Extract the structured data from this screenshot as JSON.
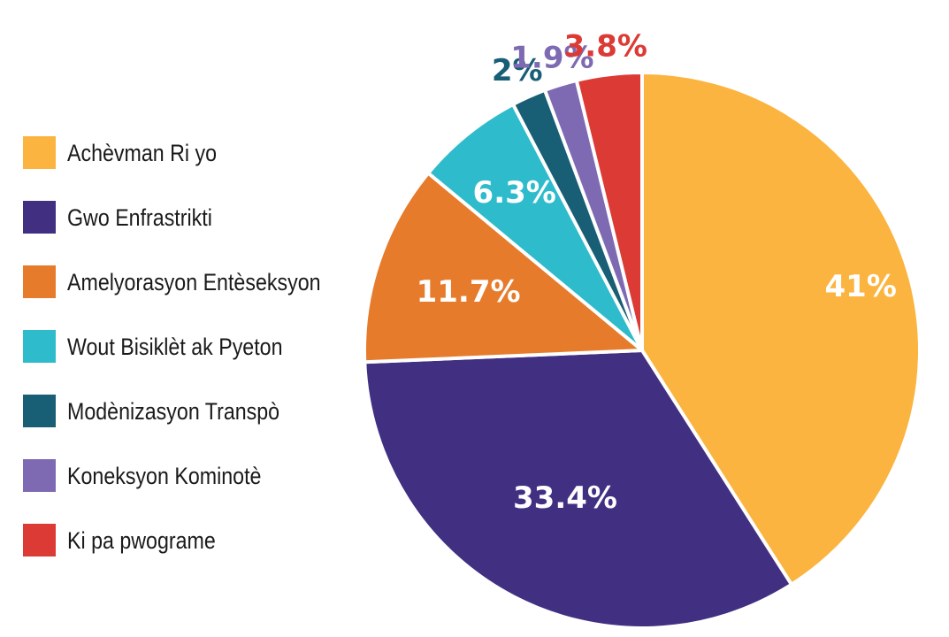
{
  "chart_data": {
    "type": "pie",
    "title": "",
    "start_angle_deg": 0,
    "direction": "clockwise",
    "legend_position": "left",
    "slices": [
      {
        "label": "Achèvman Ri yo",
        "value": 41.0,
        "display": "41%",
        "color": "#FBB43F",
        "label_color": "#FFFFFF",
        "label_inside": true
      },
      {
        "label": "Gwo Enfrastrikti",
        "value": 33.4,
        "display": "33.4%",
        "color": "#412F82",
        "label_color": "#FFFFFF",
        "label_inside": true
      },
      {
        "label": "Amelyorasyon Entèseksyon",
        "value": 11.7,
        "display": "11.7%",
        "color": "#E67B2B",
        "label_color": "#FFFFFF",
        "label_inside": true
      },
      {
        "label": "Wout Bisiklèt ak Pyeton",
        "value": 6.3,
        "display": "6.3%",
        "color": "#2EBBCC",
        "label_color": "#FFFFFF",
        "label_inside": true
      },
      {
        "label": "Modènizasyon Transpò",
        "value": 2.0,
        "display": "2%",
        "color": "#185E74",
        "label_color": "#185E74",
        "label_inside": false
      },
      {
        "label": "Koneksyon Kominotè",
        "value": 1.9,
        "display": "1.9%",
        "color": "#7E6AB3",
        "label_color": "#7E6AB3",
        "label_inside": false
      },
      {
        "label": "Ki pa pwograme",
        "value": 3.8,
        "display": "3.8%",
        "color": "#DC3A35",
        "label_color": "#DC3A35",
        "label_inside": false
      }
    ]
  }
}
